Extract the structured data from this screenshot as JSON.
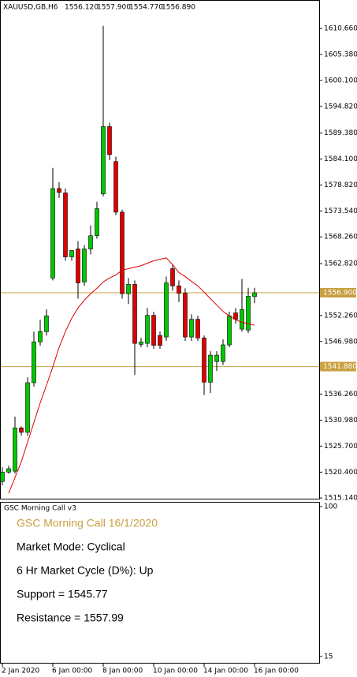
{
  "chart_data": {
    "type": "candlestick",
    "symbol": "XAUUSD,GB,H6",
    "header_values": [
      "1556.120",
      "1557.900",
      "1554.770",
      "1556.890"
    ],
    "categories": [
      "2 Jan 2020",
      null,
      null,
      null,
      null,
      null,
      null,
      null,
      "6 Jan 00:00",
      null,
      null,
      null,
      null,
      null,
      null,
      null,
      "8 Jan 00:00",
      null,
      null,
      null,
      null,
      null,
      null,
      null,
      "10 Jan 00:00",
      null,
      null,
      null,
      null,
      null,
      null,
      null,
      "14 Jan 00:00",
      null,
      null,
      null,
      null,
      null,
      null,
      null,
      "16 Jan 00:00"
    ],
    "open": [
      1518.5,
      1520.4,
      1520.6,
      1529.4,
      1528.5,
      1538.6,
      1546.9,
      1549.0,
      1559.9,
      1578.1,
      1577.2,
      1564.2,
      1565.8,
      1559.1,
      1565.8,
      1568.5,
      1577.0,
      1590.7,
      1583.6,
      1573.3,
      1556.7,
      1558.6,
      1546.4,
      1546.6,
      1552.3,
      1548.2,
      1547.9,
      1561.8,
      1558.3,
      1556.8,
      1547.9,
      1551.5,
      1547.7,
      1538.7,
      1542.9,
      1542.9,
      1546.3,
      1552.8,
      1549.5,
      1549.3,
      1556.12
    ],
    "high": [
      1521.4,
      1521.7,
      1531.7,
      1529.7,
      1539.7,
      1549.0,
      1551.4,
      1553.5,
      1582.3,
      1579.4,
      1578.1,
      1565.5,
      1567.4,
      1566.6,
      1570.6,
      1575.4,
      1611.2,
      1591.5,
      1584.6,
      1573.8,
      1559.9,
      1559.4,
      1547.7,
      1553.8,
      1553.0,
      1549.0,
      1560.2,
      1562.6,
      1559.4,
      1557.8,
      1552.5,
      1552.2,
      1548.2,
      1545.0,
      1545.0,
      1547.4,
      1553.0,
      1553.8,
      1559.7,
      1557.9,
      1557.9
    ],
    "low": [
      1517.7,
      1520.1,
      1520.1,
      1527.8,
      1527.8,
      1537.8,
      1546.1,
      1548.2,
      1559.4,
      1576.2,
      1563.4,
      1563.4,
      1555.7,
      1558.3,
      1564.7,
      1567.9,
      1576.5,
      1583.9,
      1572.7,
      1555.7,
      1554.6,
      1540.2,
      1545.8,
      1545.8,
      1545.5,
      1545.5,
      1547.1,
      1557.3,
      1555.0,
      1547.1,
      1547.1,
      1547.1,
      1536.1,
      1536.5,
      1541.0,
      1542.2,
      1545.8,
      1550.6,
      1549.0,
      1548.7,
      1554.77
    ],
    "close": [
      1520.4,
      1521.1,
      1529.4,
      1528.5,
      1538.6,
      1546.9,
      1549.0,
      1552.2,
      1578.1,
      1577.3,
      1564.2,
      1565.5,
      1558.9,
      1565.8,
      1568.5,
      1574.0,
      1590.7,
      1585.0,
      1573.3,
      1556.7,
      1558.6,
      1546.6,
      1546.9,
      1552.3,
      1546.2,
      1546.2,
      1558.9,
      1558.3,
      1556.8,
      1547.9,
      1551.5,
      1547.7,
      1538.7,
      1544.2,
      1544.2,
      1546.3,
      1552.2,
      1551.5,
      1553.5,
      1556.2,
      1556.89
    ],
    "up_color": "#00c800",
    "down_color": "#e00000",
    "moving_average": {
      "color": "#e00000",
      "values": [
        null,
        1516.1,
        1519.3,
        1522.5,
        1526.5,
        1530.5,
        1534.5,
        1538.1,
        1541.8,
        1545.8,
        1549.0,
        1551.7,
        1553.8,
        1555.4,
        1556.7,
        1557.8,
        1559.1,
        1559.9,
        1560.5,
        1561.5,
        1561.8,
        1562.1,
        1562.4,
        1562.9,
        1563.4,
        1563.7,
        1564.0,
        1562.6,
        1561.0,
        1560.2,
        1559.2,
        1558.3,
        1557.0,
        1555.7,
        1554.4,
        1553.1,
        1552.2,
        1551.4,
        1550.9,
        1550.6,
        1550.3
      ]
    },
    "levels": [
      {
        "value": 1556.9,
        "label": "1556.900"
      },
      {
        "value": 1541.88,
        "label": "1541.880"
      }
    ],
    "level_color": "#c8a040",
    "ylim": [
      1515.0,
      1616.3
    ],
    "yticks": [
      {
        "value": 1610.66,
        "label": "1610.660"
      },
      {
        "value": 1605.38,
        "label": "1605.380"
      },
      {
        "value": 1600.1,
        "label": "1600.100"
      },
      {
        "value": 1594.82,
        "label": "1594.820"
      },
      {
        "value": 1589.38,
        "label": "1589.380"
      },
      {
        "value": 1584.1,
        "label": "1584.100"
      },
      {
        "value": 1578.82,
        "label": "1578.820"
      },
      {
        "value": 1573.54,
        "label": "1573.540"
      },
      {
        "value": 1568.26,
        "label": "1568.260"
      },
      {
        "value": 1562.82,
        "label": "1562.820"
      },
      {
        "value": 1552.26,
        "label": "1552.260"
      },
      {
        "value": 1546.98,
        "label": "1546.980"
      },
      {
        "value": 1536.26,
        "label": "1536.260"
      },
      {
        "value": 1530.98,
        "label": "1530.980"
      },
      {
        "value": 1525.7,
        "label": "1525.700"
      },
      {
        "value": 1520.4,
        "label": "1520.400"
      },
      {
        "value": 1515.14,
        "label": "1515.140"
      }
    ],
    "panel": {
      "name": "GSC Morning Call v3",
      "heading": "GSC Morning Call 16/1/2020",
      "heading_color": "#c8a040",
      "lines": [
        "Market Mode: Cyclical",
        "6 Hr Market Cycle (D%): Up",
        "Support = 1545.77",
        "Resistance = 1557.99"
      ],
      "ylim": [
        15,
        100
      ],
      "yticks": [
        100,
        15
      ]
    }
  }
}
